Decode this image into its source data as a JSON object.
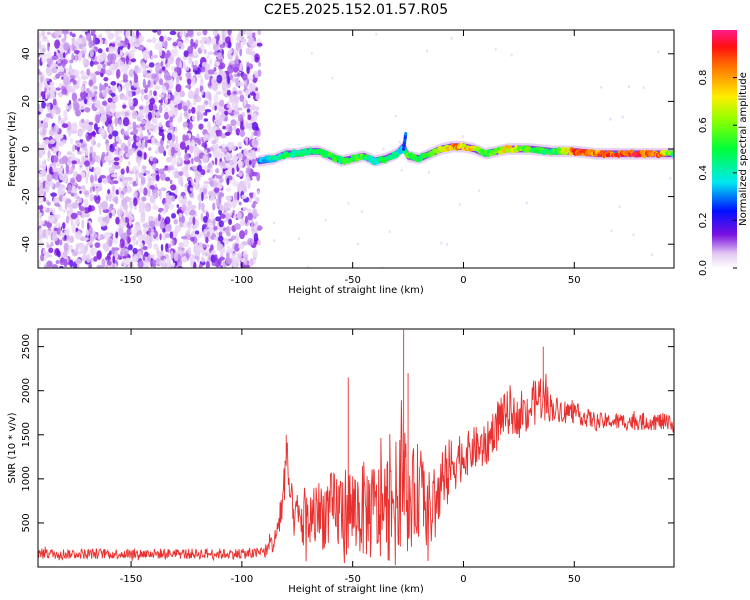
{
  "title": "C2E5.2025.152.01.57.R05",
  "chart_data": [
    {
      "type": "heatmap",
      "xlabel": "Height of straight line (km)",
      "ylabel": "Frequency (Hz)",
      "xlim": [
        -192,
        95
      ],
      "ylim": [
        -50,
        50
      ],
      "xticks": [
        -150,
        -100,
        -50,
        0,
        50
      ],
      "yticks": [
        -40,
        -20,
        0,
        20,
        40
      ],
      "noise_region_x": [
        -192,
        -92
      ],
      "ridge": {
        "x": [
          -92,
          -85,
          -80,
          -75,
          -70,
          -65,
          -60,
          -55,
          -50,
          -45,
          -40,
          -35,
          -30,
          -27,
          -25,
          -20,
          -15,
          -10,
          -5,
          0,
          5,
          10,
          15,
          20,
          30,
          40,
          50,
          60,
          70,
          80,
          90,
          95
        ],
        "freq_hz": [
          -5,
          -4,
          -2,
          -2,
          -1,
          -1,
          -3,
          -5,
          -4,
          -3,
          -5,
          -4,
          -2,
          1,
          -3,
          -4,
          -2,
          0,
          1,
          1,
          0,
          -2,
          -1,
          0,
          0,
          -1,
          -1,
          -2,
          -2,
          -2,
          -2,
          -2
        ],
        "amplitude": [
          0.35,
          0.45,
          0.55,
          0.5,
          0.5,
          0.55,
          0.6,
          0.55,
          0.6,
          0.6,
          0.45,
          0.55,
          0.5,
          0.4,
          0.7,
          0.55,
          0.6,
          0.7,
          0.9,
          0.85,
          0.8,
          0.6,
          0.65,
          0.85,
          0.6,
          0.55,
          0.95,
          0.95,
          1.0,
          1.0,
          0.95,
          0.5
        ]
      },
      "colorbar": {
        "label": "Normalized spectral amplitude",
        "range": [
          0,
          1
        ],
        "ticks": [
          0.0,
          0.2,
          0.4,
          0.6,
          0.8
        ]
      }
    },
    {
      "type": "line",
      "xlabel": "Height of straight line (km)",
      "ylabel": "SNR (10 * v/v)",
      "xlim": [
        -192,
        95
      ],
      "ylim": [
        0,
        2700
      ],
      "xticks": [
        -150,
        -100,
        -50,
        0,
        50
      ],
      "yticks": [
        500,
        1000,
        1500,
        2000,
        2500
      ],
      "color": "#e8302e",
      "envelope": {
        "x": [
          -192,
          -95,
          -90,
          -85,
          -82,
          -80,
          -77,
          -72,
          -65,
          -55,
          -45,
          -38,
          -30,
          -27,
          -25,
          -20,
          -15,
          -12,
          -8,
          -3,
          0,
          5,
          10,
          15,
          20,
          25,
          30,
          35,
          40,
          50,
          60,
          70,
          80,
          90,
          95
        ],
        "mean": [
          150,
          150,
          170,
          300,
          700,
          1150,
          600,
          500,
          600,
          650,
          650,
          600,
          800,
          1100,
          700,
          900,
          600,
          750,
          1000,
          1250,
          1250,
          1350,
          1350,
          1650,
          1750,
          1700,
          1800,
          1950,
          1800,
          1750,
          1650,
          1650,
          1650,
          1650,
          1600
        ],
        "spread": [
          60,
          60,
          70,
          150,
          300,
          300,
          250,
          350,
          400,
          500,
          550,
          600,
          650,
          800,
          550,
          550,
          450,
          450,
          400,
          350,
          250,
          250,
          250,
          250,
          250,
          200,
          250,
          300,
          150,
          120,
          100,
          100,
          100,
          100,
          100
        ]
      },
      "peaks": [
        {
          "x": -80,
          "y": 1500
        },
        {
          "x": -52,
          "y": 2150
        },
        {
          "x": -27,
          "y": 2690
        },
        {
          "x": -25,
          "y": 2200
        },
        {
          "x": 36,
          "y": 2500
        }
      ]
    }
  ]
}
